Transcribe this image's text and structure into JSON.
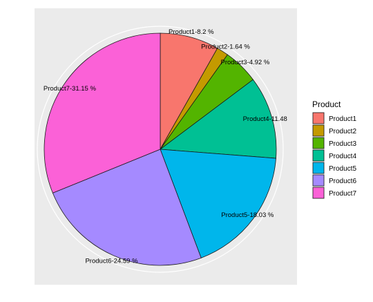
{
  "chart_data": {
    "type": "pie",
    "categories": [
      "Product1",
      "Product2",
      "Product3",
      "Product4",
      "Product5",
      "Product6",
      "Product7"
    ],
    "values": [
      8.2,
      1.64,
      4.92,
      11.48,
      18.03,
      24.59,
      31.15
    ],
    "labels": [
      "Product1-8.2 %",
      "Product2-1.64 %",
      "Product3-4.92 %",
      "Product4-11.48",
      "Product5-18.03 %",
      "Product6-24.59 %",
      "Product7-31.15 %"
    ],
    "colors": [
      "#F8766D",
      "#C49A00",
      "#53B400",
      "#00C094",
      "#00B6EB",
      "#A58AFF",
      "#FB61D7"
    ],
    "legend": {
      "title": "Product",
      "position": "right",
      "items": [
        "Product1",
        "Product2",
        "Product3",
        "Product4",
        "Product5",
        "Product6",
        "Product7"
      ]
    },
    "panel_background": "#ebebeb",
    "start_angle": "12 o'clock",
    "direction": "clockwise",
    "grid": true
  }
}
